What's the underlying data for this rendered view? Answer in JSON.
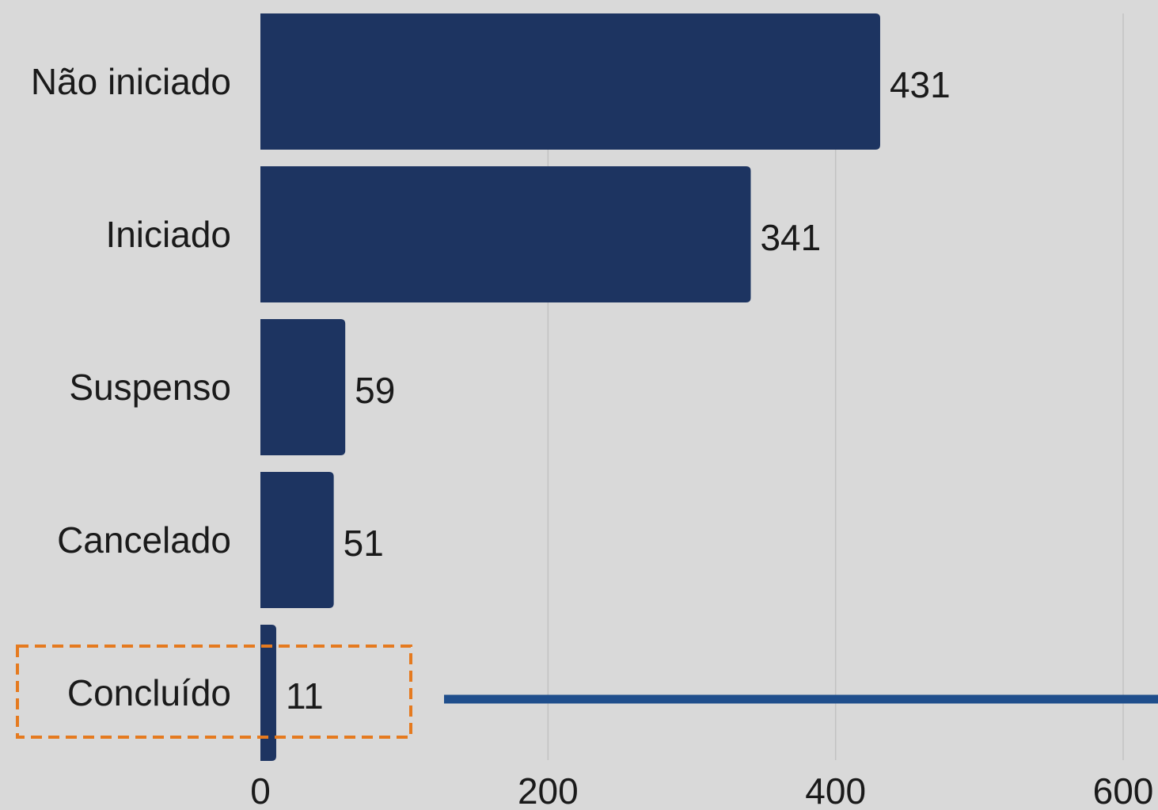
{
  "chart_data": {
    "type": "bar",
    "orientation": "horizontal",
    "categories": [
      "Não iniciado",
      "Iniciado",
      "Suspenso",
      "Cancelado",
      "Concluído"
    ],
    "values": [
      431,
      341,
      59,
      51,
      11
    ],
    "xlim": [
      0,
      600
    ],
    "xticks": [
      0,
      200,
      400,
      600
    ],
    "grid": true,
    "title": "",
    "xlabel": "",
    "ylabel": "",
    "bar_color": "#1d3461",
    "highlight": {
      "category": "Concluído",
      "box_color": "#e57a1f",
      "line_color": "#1f4e8c"
    }
  }
}
